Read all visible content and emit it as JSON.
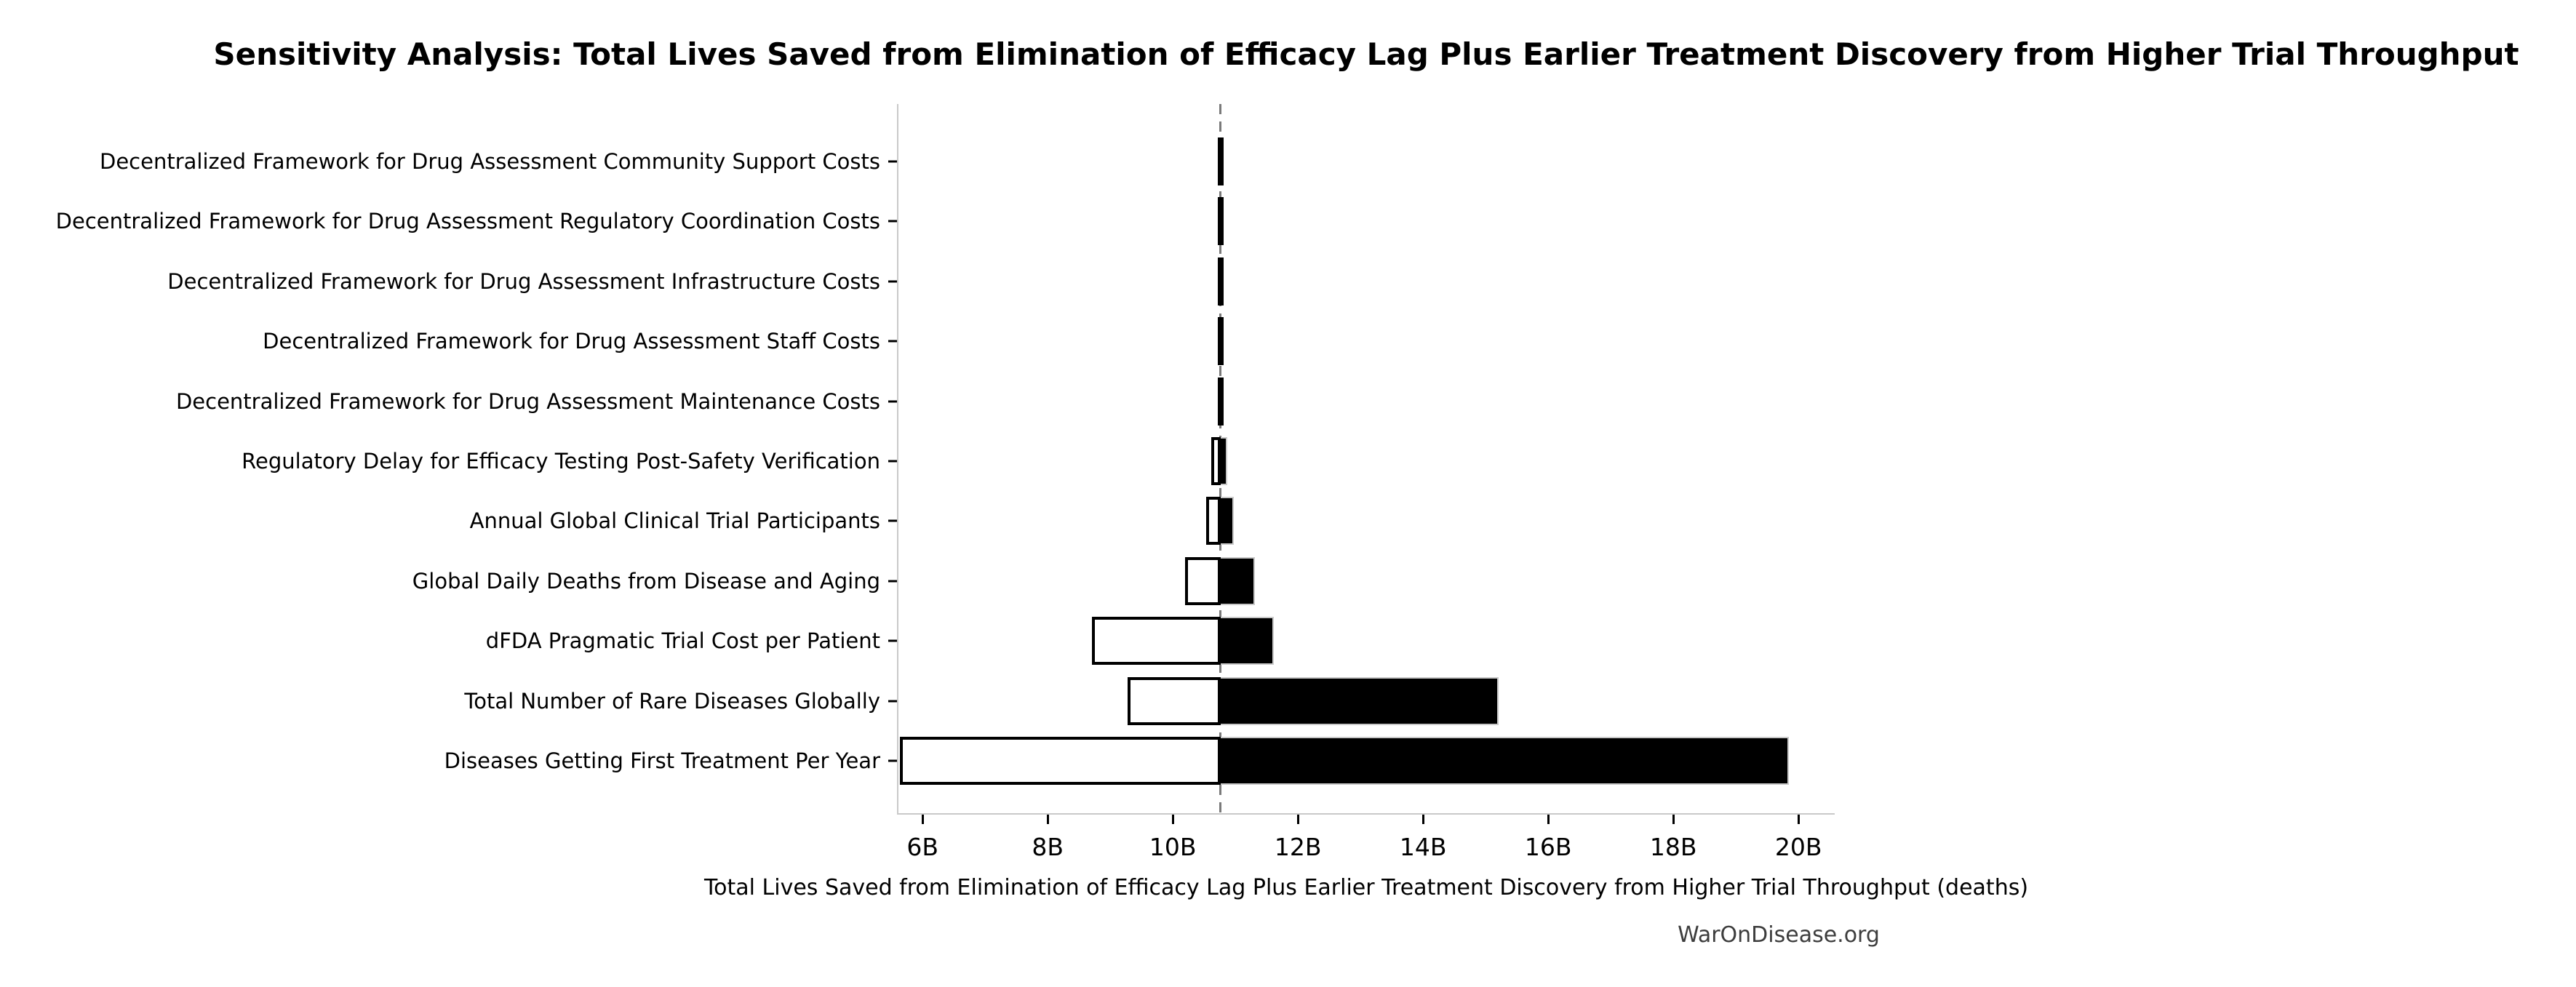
{
  "header": {
    "title": "Sensitivity Analysis: Total Lives Saved from Elimination of Efficacy Lag Plus Earlier Treatment Discovery from Higher Trial Throughput"
  },
  "footer": {
    "brand": "WarOnDisease.org"
  },
  "chart_data": {
    "type": "bar",
    "subtype": "tornado-sensitivity",
    "orientation": "horizontal",
    "title": "Sensitivity Analysis: Total Lives Saved from Elimination of Efficacy Lag Plus Earlier Treatment Discovery from Higher Trial Throughput",
    "xlabel": "Total Lives Saved from Elimination of Efficacy Lag Plus Earlier Treatment Discovery from Higher Trial Throughput (deaths)",
    "value_unit": "B",
    "baseline_value": 10.74,
    "xlim": [
      5.59,
      20.56
    ],
    "grid": false,
    "legend": false,
    "x_ticks": [
      {
        "value": 6,
        "label": "6B"
      },
      {
        "value": 8,
        "label": "8B"
      },
      {
        "value": 10,
        "label": "10B"
      },
      {
        "value": 12,
        "label": "12B"
      },
      {
        "value": 14,
        "label": "14B"
      },
      {
        "value": 16,
        "label": "16B"
      },
      {
        "value": 18,
        "label": "18B"
      },
      {
        "value": 20,
        "label": "20B"
      }
    ],
    "bars": [
      {
        "category": "Decentralized Framework for Drug Assessment Community Support Costs",
        "low": 10.69,
        "high": 10.79
      },
      {
        "category": "Decentralized Framework for Drug Assessment Regulatory Coordination Costs",
        "low": 10.69,
        "high": 10.79
      },
      {
        "category": "Decentralized Framework for Drug Assessment Infrastructure Costs",
        "low": 10.69,
        "high": 10.79
      },
      {
        "category": "Decentralized Framework for Drug Assessment Staff Costs",
        "low": 10.69,
        "high": 10.79
      },
      {
        "category": "Decentralized Framework for Drug Assessment Maintenance Costs",
        "low": 10.69,
        "high": 10.79
      },
      {
        "category": "Regulatory Delay for Efficacy Testing Post-Safety Verification",
        "low": 10.59,
        "high": 10.85
      },
      {
        "category": "Annual Global Clinical Trial Participants",
        "low": 10.51,
        "high": 10.95
      },
      {
        "category": "Global Daily Deaths from Disease and Aging",
        "low": 10.17,
        "high": 11.29
      },
      {
        "category": "dFDA Pragmatic Trial Cost per Patient",
        "low": 8.68,
        "high": 11.59
      },
      {
        "category": "Total Number of Rare Diseases Globally",
        "low": 9.25,
        "high": 15.18
      },
      {
        "category": "Diseases Getting First Treatment Per Year",
        "low": 5.61,
        "high": 19.82
      }
    ],
    "colors": {
      "bar_high_fill": "#000000",
      "bar_low_fill": "#ffffff",
      "bar_low_border": "#000000",
      "bar_outline": "#c9c9c9",
      "spine": "#c9c9c9",
      "baseline_line": "#7a7a7a",
      "text": "#000000",
      "footer_text": "#3d3d3d"
    }
  }
}
